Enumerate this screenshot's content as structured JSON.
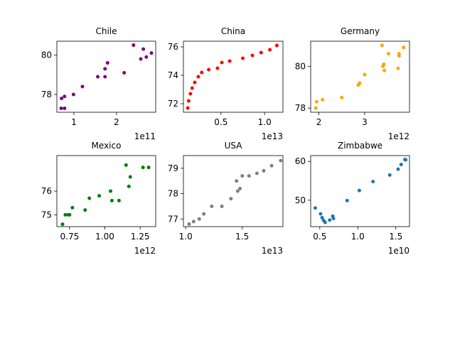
{
  "chart_data": [
    {
      "type": "scatter",
      "title": "Chile",
      "color": "#800080",
      "x_scale_label": "1e11",
      "xlim": [
        0.6,
        2.92
      ],
      "ylim": [
        77.1,
        80.7
      ],
      "xticks": [
        {
          "value": 1,
          "label": "1"
        },
        {
          "value": 2,
          "label": "2"
        }
      ],
      "yticks": [
        {
          "value": 78,
          "label": "78"
        },
        {
          "value": 80,
          "label": "80"
        }
      ],
      "points": [
        {
          "x": 0.7,
          "y": 77.3
        },
        {
          "x": 0.71,
          "y": 77.8
        },
        {
          "x": 0.78,
          "y": 77.9
        },
        {
          "x": 0.78,
          "y": 77.3
        },
        {
          "x": 0.99,
          "y": 78.0
        },
        {
          "x": 1.2,
          "y": 78.4
        },
        {
          "x": 1.56,
          "y": 78.9
        },
        {
          "x": 1.73,
          "y": 78.9
        },
        {
          "x": 1.73,
          "y": 79.3
        },
        {
          "x": 1.79,
          "y": 79.6
        },
        {
          "x": 2.18,
          "y": 79.1
        },
        {
          "x": 2.4,
          "y": 80.5
        },
        {
          "x": 2.57,
          "y": 79.8
        },
        {
          "x": 2.63,
          "y": 80.3
        },
        {
          "x": 2.7,
          "y": 79.9
        },
        {
          "x": 2.82,
          "y": 80.1
        }
      ]
    },
    {
      "type": "scatter",
      "title": "China",
      "color": "#ff0000",
      "x_scale_label": "1e13",
      "xlim": [
        0.07,
        1.21
      ],
      "ylim": [
        71.4,
        76.4
      ],
      "xticks": [
        {
          "value": 0.5,
          "label": "0.5"
        },
        {
          "value": 1.0,
          "label": "1.0"
        }
      ],
      "yticks": [
        {
          "value": 72,
          "label": "72"
        },
        {
          "value": 74,
          "label": "74"
        },
        {
          "value": 76,
          "label": "76"
        }
      ],
      "points": [
        {
          "x": 0.12,
          "y": 71.7
        },
        {
          "x": 0.13,
          "y": 72.2
        },
        {
          "x": 0.15,
          "y": 72.7
        },
        {
          "x": 0.17,
          "y": 73.1
        },
        {
          "x": 0.2,
          "y": 73.5
        },
        {
          "x": 0.24,
          "y": 73.9
        },
        {
          "x": 0.28,
          "y": 74.2
        },
        {
          "x": 0.36,
          "y": 74.4
        },
        {
          "x": 0.46,
          "y": 74.5
        },
        {
          "x": 0.51,
          "y": 74.9
        },
        {
          "x": 0.6,
          "y": 75.0
        },
        {
          "x": 0.75,
          "y": 75.2
        },
        {
          "x": 0.86,
          "y": 75.4
        },
        {
          "x": 0.96,
          "y": 75.6
        },
        {
          "x": 1.06,
          "y": 75.8
        },
        {
          "x": 1.14,
          "y": 76.1
        }
      ]
    },
    {
      "type": "scatter",
      "title": "Germany",
      "color": "#ffa500",
      "x_scale_label": "1e12",
      "xlim": [
        1.82,
        3.98
      ],
      "ylim": [
        77.8,
        81.2
      ],
      "xticks": [
        {
          "value": 2,
          "label": "2"
        },
        {
          "value": 3,
          "label": "3"
        }
      ],
      "yticks": [
        {
          "value": 78,
          "label": "78"
        },
        {
          "value": 80,
          "label": "80"
        }
      ],
      "points": [
        {
          "x": 1.93,
          "y": 78.0
        },
        {
          "x": 1.95,
          "y": 78.3
        },
        {
          "x": 2.08,
          "y": 78.4
        },
        {
          "x": 2.5,
          "y": 78.5
        },
        {
          "x": 2.86,
          "y": 79.1
        },
        {
          "x": 2.89,
          "y": 79.2
        },
        {
          "x": 3.0,
          "y": 79.6
        },
        {
          "x": 3.38,
          "y": 81.0
        },
        {
          "x": 3.4,
          "y": 80.0
        },
        {
          "x": 3.42,
          "y": 80.1
        },
        {
          "x": 3.43,
          "y": 79.8
        },
        {
          "x": 3.52,
          "y": 80.6
        },
        {
          "x": 3.73,
          "y": 79.9
        },
        {
          "x": 3.75,
          "y": 80.5
        },
        {
          "x": 3.75,
          "y": 80.6
        },
        {
          "x": 3.85,
          "y": 80.9
        }
      ]
    },
    {
      "type": "scatter",
      "title": "Mexico",
      "color": "#008000",
      "x_scale_label": "1e12",
      "xlim": [
        0.66,
        1.36
      ],
      "ylim": [
        74.5,
        77.5
      ],
      "xticks": [
        {
          "value": 0.75,
          "label": "0.75"
        },
        {
          "value": 1.0,
          "label": "1.00"
        },
        {
          "value": 1.25,
          "label": "1.25"
        }
      ],
      "yticks": [
        {
          "value": 75,
          "label": "75"
        },
        {
          "value": 76,
          "label": "76"
        }
      ],
      "points": [
        {
          "x": 0.7,
          "y": 74.6
        },
        {
          "x": 0.72,
          "y": 75.0
        },
        {
          "x": 0.74,
          "y": 75.0
        },
        {
          "x": 0.75,
          "y": 75.0
        },
        {
          "x": 0.77,
          "y": 75.3
        },
        {
          "x": 0.86,
          "y": 75.2
        },
        {
          "x": 0.89,
          "y": 75.7
        },
        {
          "x": 0.96,
          "y": 75.8
        },
        {
          "x": 1.04,
          "y": 76.0
        },
        {
          "x": 1.05,
          "y": 75.6
        },
        {
          "x": 1.1,
          "y": 75.6
        },
        {
          "x": 1.15,
          "y": 77.1
        },
        {
          "x": 1.17,
          "y": 76.2
        },
        {
          "x": 1.18,
          "y": 76.6
        },
        {
          "x": 1.27,
          "y": 77.0
        },
        {
          "x": 1.31,
          "y": 77.0
        }
      ]
    },
    {
      "type": "scatter",
      "title": "USA",
      "color": "#808080",
      "x_scale_label": "1e13",
      "xlim": [
        0.98,
        1.86
      ],
      "ylim": [
        76.7,
        79.5
      ],
      "xticks": [
        {
          "value": 1.0,
          "label": "1.0"
        },
        {
          "value": 1.5,
          "label": "1.5"
        }
      ],
      "yticks": [
        {
          "value": 77,
          "label": "77"
        },
        {
          "value": 78,
          "label": "78"
        },
        {
          "value": 79,
          "label": "79"
        }
      ],
      "points": [
        {
          "x": 1.03,
          "y": 76.8
        },
        {
          "x": 1.07,
          "y": 76.9
        },
        {
          "x": 1.12,
          "y": 77.0
        },
        {
          "x": 1.16,
          "y": 77.2
        },
        {
          "x": 1.23,
          "y": 77.5
        },
        {
          "x": 1.32,
          "y": 77.5
        },
        {
          "x": 1.4,
          "y": 77.8
        },
        {
          "x": 1.45,
          "y": 78.5
        },
        {
          "x": 1.46,
          "y": 78.1
        },
        {
          "x": 1.48,
          "y": 78.2
        },
        {
          "x": 1.5,
          "y": 78.7
        },
        {
          "x": 1.56,
          "y": 78.7
        },
        {
          "x": 1.63,
          "y": 78.8
        },
        {
          "x": 1.69,
          "y": 78.9
        },
        {
          "x": 1.76,
          "y": 79.1
        },
        {
          "x": 1.84,
          "y": 79.3
        }
      ]
    },
    {
      "type": "scatter",
      "title": "Zimbabwe",
      "color": "#1f77b4",
      "x_scale_label": "1e10",
      "xlim": [
        0.38,
        1.68
      ],
      "ylim": [
        43.2,
        61.5
      ],
      "xticks": [
        {
          "value": 0.5,
          "label": "0.5"
        },
        {
          "value": 1.0,
          "label": "1.0"
        },
        {
          "value": 1.5,
          "label": "1.5"
        }
      ],
      "yticks": [
        {
          "value": 50,
          "label": "50"
        },
        {
          "value": 60,
          "label": "60"
        }
      ],
      "points": [
        {
          "x": 0.44,
          "y": 48.0
        },
        {
          "x": 0.51,
          "y": 46.5
        },
        {
          "x": 0.53,
          "y": 45.5
        },
        {
          "x": 0.55,
          "y": 44.8
        },
        {
          "x": 0.57,
          "y": 44.3
        },
        {
          "x": 0.63,
          "y": 44.9
        },
        {
          "x": 0.67,
          "y": 45.9
        },
        {
          "x": 0.68,
          "y": 45.3
        },
        {
          "x": 0.86,
          "y": 49.9
        },
        {
          "x": 1.02,
          "y": 52.5
        },
        {
          "x": 1.2,
          "y": 54.8
        },
        {
          "x": 1.42,
          "y": 56.5
        },
        {
          "x": 1.53,
          "y": 58.0
        },
        {
          "x": 1.57,
          "y": 59.2
        },
        {
          "x": 1.62,
          "y": 60.5
        },
        {
          "x": 1.63,
          "y": 60.4
        }
      ]
    }
  ]
}
